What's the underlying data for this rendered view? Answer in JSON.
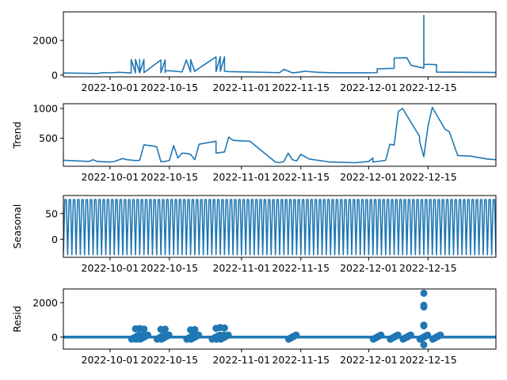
{
  "chart_data": [
    {
      "panel": "observed",
      "type": "line",
      "ylabel": "",
      "xlim": [
        "2022-09-20",
        "2022-12-31"
      ],
      "ylim": [
        -100,
        3650
      ],
      "yticks": [
        0,
        2000
      ],
      "xticks": [
        "2022-10-01",
        "2022-10-15",
        "2022-11-01",
        "2022-11-15",
        "2022-12-01",
        "2022-12-15"
      ],
      "x": [
        "2022-09-20",
        "2022-09-28",
        "2022-09-29",
        "2022-10-02",
        "2022-10-03",
        "2022-10-06",
        "2022-10-06",
        "2022-10-07",
        "2022-10-07",
        "2022-10-08",
        "2022-10-08",
        "2022-10-08",
        "2022-10-09",
        "2022-10-09",
        "2022-10-13",
        "2022-10-13",
        "2022-10-14",
        "2022-10-14",
        "2022-10-14",
        "2022-10-15",
        "2022-10-18",
        "2022-10-19",
        "2022-10-20",
        "2022-10-20",
        "2022-10-21",
        "2022-10-21",
        "2022-10-26",
        "2022-10-26",
        "2022-10-27",
        "2022-10-27",
        "2022-10-28",
        "2022-10-28",
        "2022-10-29",
        "2022-11-10",
        "2022-11-11",
        "2022-11-13",
        "2022-11-14",
        "2022-11-16",
        "2022-11-19",
        "2022-11-23",
        "2022-12-01",
        "2022-12-03",
        "2022-12-03",
        "2022-12-07",
        "2022-12-07",
        "2022-12-10",
        "2022-12-11",
        "2022-12-14",
        "2022-12-14",
        "2022-12-14",
        "2022-12-15",
        "2022-12-17",
        "2022-12-17",
        "2022-12-31"
      ],
      "y": [
        120,
        90,
        130,
        140,
        160,
        120,
        900,
        130,
        900,
        130,
        900,
        130,
        900,
        140,
        870,
        140,
        880,
        140,
        240,
        250,
        180,
        870,
        180,
        900,
        200,
        230,
        1050,
        210,
        1060,
        220,
        1050,
        220,
        200,
        140,
        330,
        130,
        150,
        220,
        160,
        130,
        130,
        140,
        360,
        390,
        980,
        1000,
        560,
        400,
        3450,
        600,
        620,
        600,
        170,
        150
      ]
    },
    {
      "panel": "trend",
      "type": "line",
      "ylabel": "Trend",
      "xlim": [
        "2022-09-20",
        "2022-12-31"
      ],
      "ylim": [
        30,
        1080
      ],
      "yticks": [
        500,
        1000
      ],
      "xticks": [
        "2022-10-01",
        "2022-10-15",
        "2022-11-01",
        "2022-11-15",
        "2022-12-01",
        "2022-12-15"
      ],
      "x": [
        "2022-09-20",
        "2022-09-26",
        "2022-09-27",
        "2022-09-28",
        "2022-10-01",
        "2022-10-02",
        "2022-10-04",
        "2022-10-05",
        "2022-10-07",
        "2022-10-08",
        "2022-10-09",
        "2022-10-12",
        "2022-10-13",
        "2022-10-14",
        "2022-10-15",
        "2022-10-16",
        "2022-10-17",
        "2022-10-18",
        "2022-10-19",
        "2022-10-20",
        "2022-10-21",
        "2022-10-22",
        "2022-10-26",
        "2022-10-26",
        "2022-10-28",
        "2022-10-29",
        "2022-10-30",
        "2022-11-03",
        "2022-11-09",
        "2022-11-10",
        "2022-11-11",
        "2022-11-12",
        "2022-11-13",
        "2022-11-14",
        "2022-11-15",
        "2022-11-17",
        "2022-11-22",
        "2022-11-28",
        "2022-12-01",
        "2022-12-02",
        "2022-12-02",
        "2022-12-05",
        "2022-12-06",
        "2022-12-07",
        "2022-12-08",
        "2022-12-09",
        "2022-12-13",
        "2022-12-13",
        "2022-12-14",
        "2022-12-15",
        "2022-12-16",
        "2022-12-19",
        "2022-12-20",
        "2022-12-22",
        "2022-12-25",
        "2022-12-29",
        "2022-12-31"
      ],
      "y": [
        130,
        110,
        140,
        110,
        100,
        110,
        160,
        140,
        125,
        130,
        390,
        360,
        105,
        110,
        130,
        375,
        170,
        250,
        245,
        230,
        140,
        400,
        450,
        250,
        270,
        520,
        465,
        450,
        100,
        90,
        110,
        250,
        140,
        120,
        230,
        150,
        100,
        90,
        110,
        170,
        100,
        130,
        400,
        385,
        950,
        1000,
        530,
        450,
        190,
        710,
        1020,
        650,
        610,
        210,
        200,
        150,
        140
      ]
    },
    {
      "panel": "seasonal",
      "type": "line",
      "ylabel": "Seasonal",
      "xlim": [
        "2022-09-20",
        "2022-12-31"
      ],
      "ylim": [
        -35,
        85
      ],
      "yticks": [
        0,
        50
      ],
      "xticks": [
        "2022-10-01",
        "2022-10-15",
        "2022-11-01",
        "2022-11-15",
        "2022-12-01",
        "2022-12-15"
      ],
      "period_days": 1,
      "max": 77,
      "min": -30
    },
    {
      "panel": "resid",
      "type": "scatter",
      "ylabel": "Resid",
      "xlim": [
        "2022-09-20",
        "2022-12-31"
      ],
      "ylim": [
        -700,
        2800
      ],
      "yticks": [
        0,
        2000
      ],
      "xticks": [
        "2022-10-01",
        "2022-10-15",
        "2022-11-01",
        "2022-11-15",
        "2022-12-01",
        "2022-12-15"
      ],
      "x": [
        "2022-10-07",
        "2022-10-08",
        "2022-10-09",
        "2022-10-13",
        "2022-10-14",
        "2022-10-20",
        "2022-10-21",
        "2022-10-26",
        "2022-10-27",
        "2022-10-28",
        "2022-12-14",
        "2022-12-14",
        "2022-12-14",
        "2022-12-14",
        "2022-12-14",
        "2022-12-14"
      ],
      "y": [
        480,
        500,
        470,
        450,
        460,
        420,
        440,
        510,
        560,
        530,
        2550,
        1850,
        1750,
        700,
        650,
        -450
      ]
    }
  ]
}
